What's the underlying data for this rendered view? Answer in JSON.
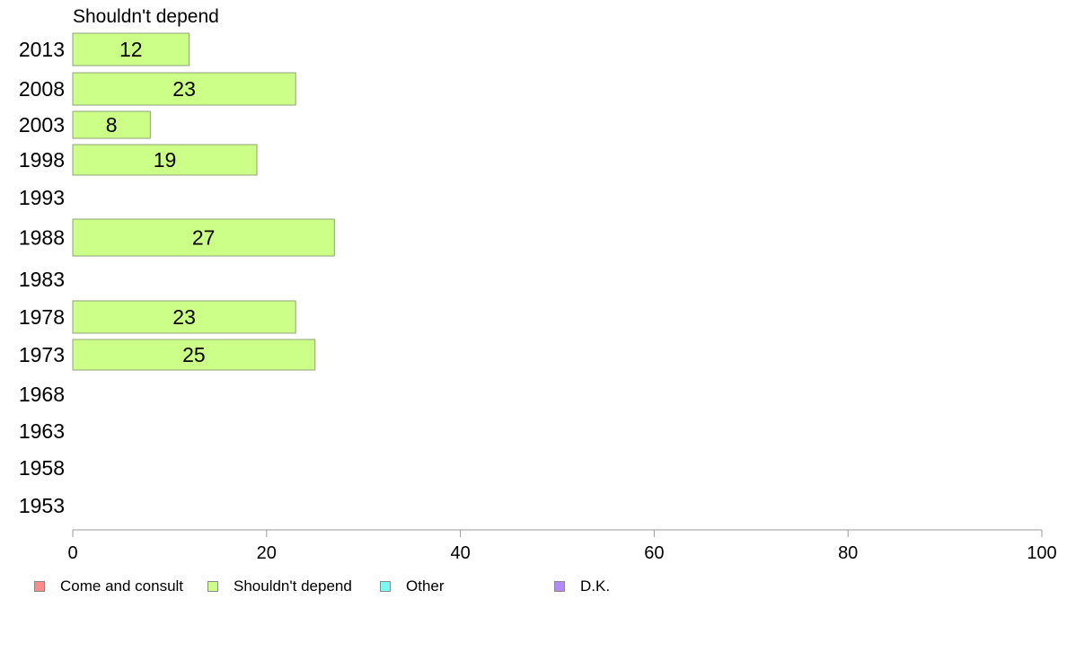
{
  "chart_data": {
    "type": "bar",
    "orientation": "horizontal",
    "title": "Shouldn't depend",
    "categories": [
      "2013",
      "2008",
      "2003",
      "1998",
      "1993",
      "1988",
      "1983",
      "1978",
      "1973",
      "1968",
      "1963",
      "1958",
      "1953"
    ],
    "series": [
      {
        "name": "Shouldn't depend",
        "color": "#ccff88",
        "values": [
          12,
          23,
          8,
          19,
          null,
          27,
          null,
          23,
          25,
          null,
          null,
          null,
          null
        ],
        "data_labels": [
          "12",
          "23",
          "8",
          "19",
          "",
          "27",
          "",
          "23",
          "25",
          "",
          "",
          "",
          ""
        ]
      }
    ],
    "xlim": [
      0,
      100
    ],
    "x_ticks": [
      "0",
      "20",
      "40",
      "60",
      "80",
      "100"
    ],
    "grid": false,
    "legend_position": "bottom-left",
    "legend": [
      {
        "label": "Come and consult",
        "color": "#ff8a8a"
      },
      {
        "label": "Shouldn't depend",
        "color": "#ccff88"
      },
      {
        "label": "Other",
        "color": "#7af8f2"
      },
      {
        "label": "D.K.",
        "color": "#b48af5"
      }
    ]
  }
}
